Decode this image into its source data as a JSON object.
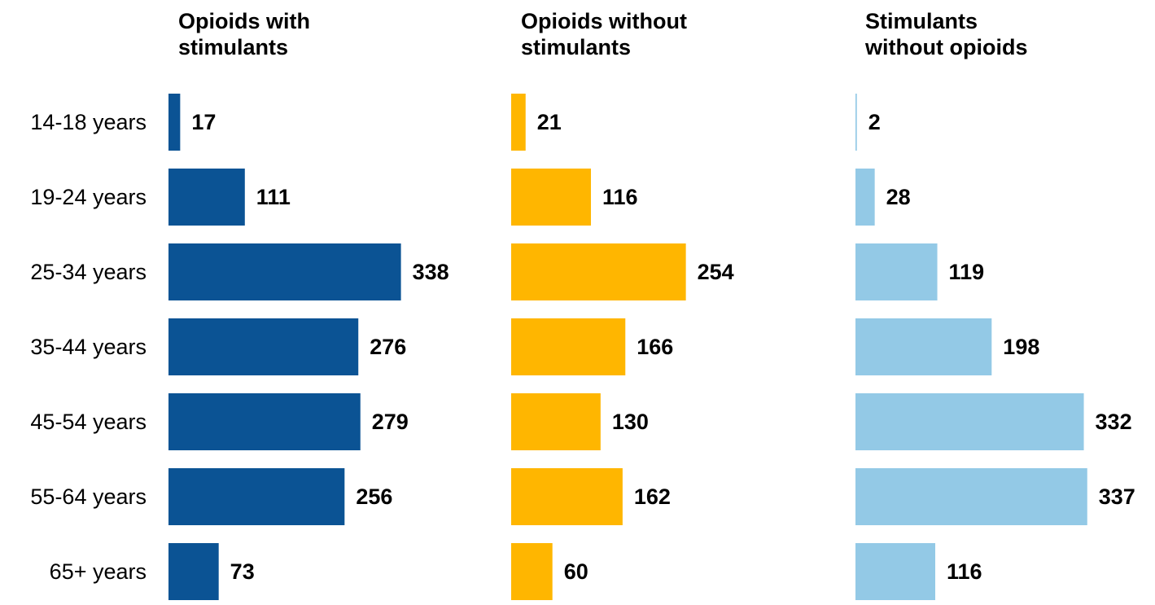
{
  "chart_data": {
    "type": "bar",
    "orientation": "horizontal",
    "layout": "small-multiples",
    "categories": [
      "14-18 years",
      "19-24 years",
      "25-34 years",
      "35-44 years",
      "45-54 years",
      "55-64 years",
      "65+ years"
    ],
    "series": [
      {
        "name": "Opioids with stimulants",
        "title_lines": [
          "Opioids with",
          "stimulants"
        ],
        "color": "#0B5394",
        "values": [
          17,
          111,
          338,
          276,
          279,
          256,
          73
        ]
      },
      {
        "name": "Opioids without stimulants",
        "title_lines": [
          "Opioids without",
          "stimulants"
        ],
        "color": "#FFB600",
        "values": [
          21,
          116,
          254,
          166,
          130,
          162,
          60
        ]
      },
      {
        "name": "Stimulants without opioids",
        "title_lines": [
          "Stimulants",
          "without opioids"
        ],
        "color": "#93C9E6",
        "values": [
          2,
          28,
          119,
          198,
          332,
          337,
          116
        ]
      }
    ],
    "data_labels": true,
    "grid": false,
    "legend": "none",
    "xlim": [
      0,
      340
    ]
  }
}
